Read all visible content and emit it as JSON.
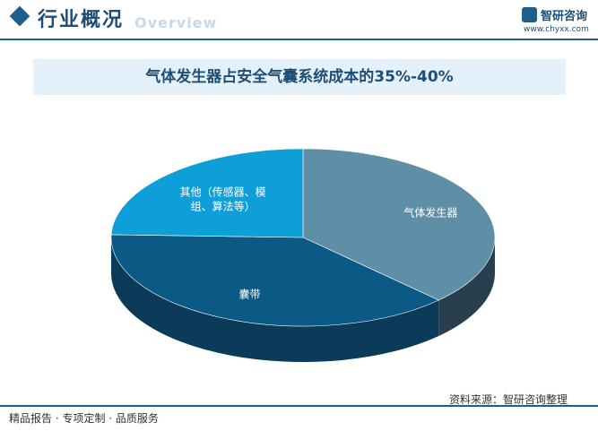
{
  "header": {
    "section_title": "行业概况",
    "section_watermark": "Overview",
    "brand_name": "智研咨询",
    "brand_url": "www.chyxx.com"
  },
  "chart_data": {
    "type": "pie",
    "title": "气体发生器占安全气囊系统成本的35%-40%",
    "slices": [
      {
        "label": "气体发生器",
        "value": 37.5,
        "color": "#5f8fa6",
        "side_color": "#283f4d"
      },
      {
        "label": "囊带",
        "value": 38,
        "color": "#0b5a86",
        "side_color": "#0b3b59"
      },
      {
        "label": "其他（传感器、模组、算法等）",
        "label_lines": [
          "其他（传感器、模",
          "组、算法等）"
        ],
        "value": 24.5,
        "color": "#0f9fd8",
        "side_color": "#0a6d96"
      }
    ],
    "legend": "none",
    "data_labels": "inside"
  },
  "footer": {
    "tagline": "精品报告 · 专项定制 · 品质服务",
    "source": "资料来源：智研咨询整理"
  }
}
